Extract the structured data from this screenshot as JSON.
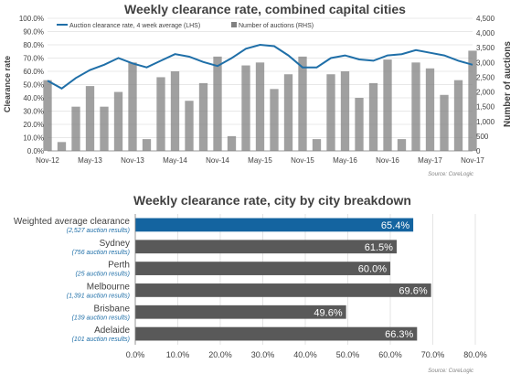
{
  "chart_data": [
    {
      "type": "bar+line",
      "title": "Weekly clearance rate, combined capital cities",
      "ylabel": "Clearance rate",
      "y2label": "Number of auctions",
      "ylim": [
        0,
        100
      ],
      "y2lim": [
        0,
        4500
      ],
      "yticks": [
        "0.0%",
        "10.0%",
        "20.0%",
        "30.0%",
        "40.0%",
        "50.0%",
        "60.0%",
        "70.0%",
        "80.0%",
        "90.0%",
        "100.0%"
      ],
      "y2ticks": [
        "0",
        "500",
        "1,000",
        "1,500",
        "2,000",
        "2,500",
        "3,000",
        "3,500",
        "4,000",
        "4,500"
      ],
      "xticks": [
        "Nov-12",
        "May-13",
        "Nov-13",
        "May-14",
        "Nov-14",
        "May-15",
        "Nov-15",
        "May-16",
        "Nov-16",
        "May-17",
        "Nov-17"
      ],
      "legend_position": "top-left",
      "grid": true,
      "source": "Source: CoreLogic",
      "series": [
        {
          "name": "Auction clearance rate, 4 week average (LHS)",
          "type": "line",
          "axis": "left",
          "color": "#1f6fa8",
          "x": [
            "Nov-12",
            "Jan-13",
            "Mar-13",
            "May-13",
            "Jul-13",
            "Sep-13",
            "Nov-13",
            "Jan-14",
            "Mar-14",
            "May-14",
            "Jul-14",
            "Sep-14",
            "Nov-14",
            "Jan-15",
            "Mar-15",
            "May-15",
            "Jul-15",
            "Sep-15",
            "Nov-15",
            "Jan-16",
            "Mar-16",
            "May-16",
            "Jul-16",
            "Sep-16",
            "Nov-16",
            "Jan-17",
            "Mar-17",
            "May-17",
            "Jul-17",
            "Sep-17",
            "Nov-17"
          ],
          "values": [
            53,
            47,
            55,
            61,
            65,
            70,
            66,
            63,
            68,
            73,
            71,
            67,
            64,
            70,
            77,
            80,
            79,
            72,
            63,
            63,
            70,
            72,
            69,
            68,
            72,
            73,
            76,
            74,
            72,
            68,
            65
          ]
        },
        {
          "name": "Number of auctions (RHS)",
          "type": "bar",
          "axis": "right",
          "color": "#808080",
          "x": [
            "Nov-12",
            "Jan-13",
            "Mar-13",
            "May-13",
            "Jul-13",
            "Sep-13",
            "Nov-13",
            "Jan-14",
            "Mar-14",
            "May-14",
            "Jul-14",
            "Sep-14",
            "Nov-14",
            "Jan-15",
            "Mar-15",
            "May-15",
            "Jul-15",
            "Sep-15",
            "Nov-15",
            "Jan-16",
            "Mar-16",
            "May-16",
            "Jul-16",
            "Sep-16",
            "Nov-16",
            "Jan-17",
            "Mar-17",
            "May-17",
            "Jul-17",
            "Sep-17",
            "Nov-17"
          ],
          "values": [
            2400,
            300,
            1500,
            2200,
            1500,
            2000,
            3000,
            400,
            2500,
            2700,
            1700,
            2300,
            3200,
            500,
            2900,
            3000,
            2100,
            2600,
            3200,
            400,
            2600,
            2700,
            1800,
            2300,
            3100,
            400,
            3000,
            2800,
            1900,
            2400,
            3400
          ]
        }
      ]
    },
    {
      "type": "bar",
      "orientation": "horizontal",
      "title": "Weekly clearance rate, city by city breakdown",
      "categories": [
        "Weighted average clearance",
        "Sydney",
        "Perth",
        "Melbourne",
        "Brisbane",
        "Adelaide"
      ],
      "sublabels": [
        "(2,527 auction results)",
        "(756 auction results)",
        "(25 auction results)",
        "(1,391 auction results)",
        "(139 auction results)",
        "(101 auction results)"
      ],
      "values": [
        65.4,
        61.5,
        60.0,
        69.6,
        49.6,
        66.3
      ],
      "value_labels": [
        "65.4%",
        "61.5%",
        "60.0%",
        "69.6%",
        "49.6%",
        "66.3%"
      ],
      "colors": [
        "#1464a0",
        "#595959",
        "#595959",
        "#595959",
        "#595959",
        "#595959"
      ],
      "xlim": [
        0,
        80
      ],
      "xticks": [
        "0.0%",
        "10.0%",
        "20.0%",
        "30.0%",
        "40.0%",
        "50.0%",
        "60.0%",
        "70.0%",
        "80.0%"
      ],
      "grid": true,
      "source": "Source: CoreLogic"
    }
  ]
}
